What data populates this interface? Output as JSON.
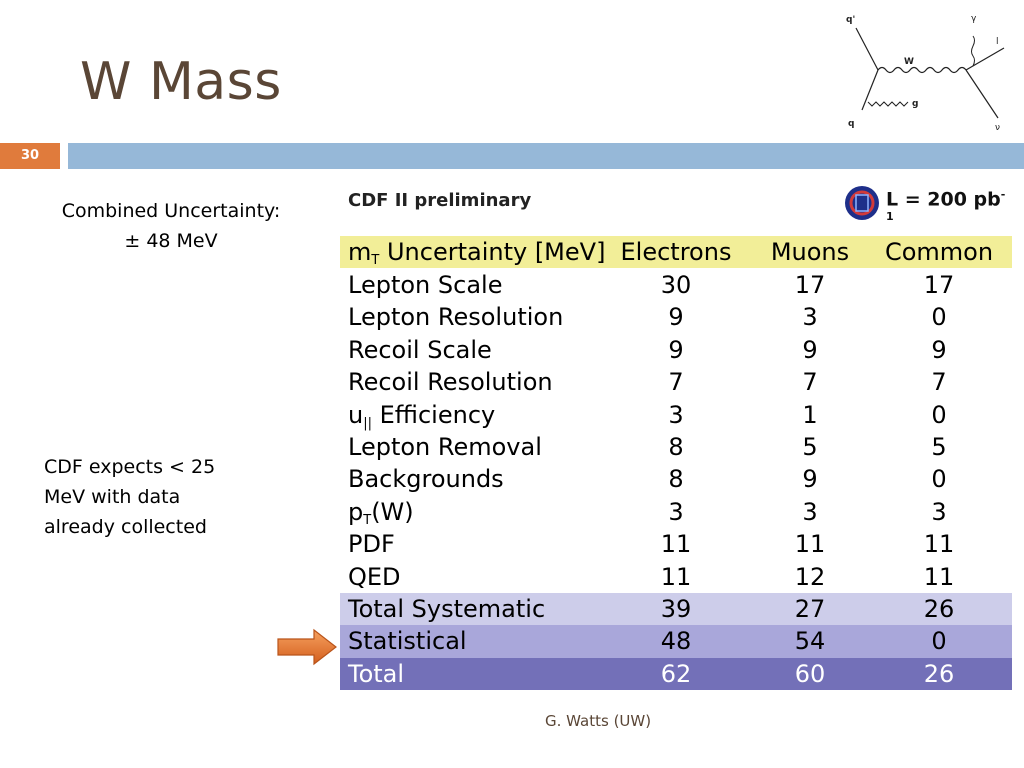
{
  "slide": {
    "title": "W Mass",
    "number": "30",
    "footer": "G. Watts (UW)"
  },
  "diagram": {
    "labels": [
      "q'",
      "γ",
      "l",
      "W",
      "g",
      "q",
      "ν"
    ]
  },
  "notes": {
    "combined_line1": "Combined Uncertainty:",
    "combined_line2": "± 48 MeV",
    "expect_line1": "CDF expects < 25",
    "expect_line2": "MeV with data",
    "expect_line3": "already collected"
  },
  "table": {
    "source": "CDF II preliminary",
    "luminosity": "L = 200 pb",
    "luminosity_exp": "-1",
    "header": {
      "label_main": "m",
      "label_sub": "T",
      "label_rest": " Uncertainty [MeV]",
      "electrons": "Electrons",
      "muons": "Muons",
      "common": "Common"
    },
    "rows": [
      {
        "label": "Lepton Scale",
        "e": "30",
        "m": "17",
        "c": "17"
      },
      {
        "label": "Lepton Resolution",
        "e": "9",
        "m": "3",
        "c": "0"
      },
      {
        "label": "Recoil Scale",
        "e": "9",
        "m": "9",
        "c": "9"
      },
      {
        "label": "Recoil Resolution",
        "e": "7",
        "m": "7",
        "c": "7"
      },
      {
        "label_main": "u",
        "label_sub": "||",
        "label_rest": " Efficiency",
        "e": "3",
        "m": "1",
        "c": "0"
      },
      {
        "label": "Lepton Removal",
        "e": "8",
        "m": "5",
        "c": "5"
      },
      {
        "label": "Backgrounds",
        "e": "8",
        "m": "9",
        "c": "0"
      },
      {
        "label_main": "p",
        "label_sub": "T",
        "label_rest": "(W)",
        "e": "3",
        "m": "3",
        "c": "3"
      },
      {
        "label": "PDF",
        "e": "11",
        "m": "11",
        "c": "11"
      },
      {
        "label": "QED",
        "e": "11",
        "m": "12",
        "c": "11"
      },
      {
        "label": "Total Systematic",
        "e": "39",
        "m": "27",
        "c": "26"
      },
      {
        "label": "Statistical",
        "e": "48",
        "m": "54",
        "c": "0"
      },
      {
        "label": "Total",
        "e": "62",
        "m": "60",
        "c": "26"
      }
    ]
  },
  "colors": {
    "accent_orange": "#e07b3c",
    "band_blue": "#96b8d8",
    "title_brown": "#5a4636"
  }
}
